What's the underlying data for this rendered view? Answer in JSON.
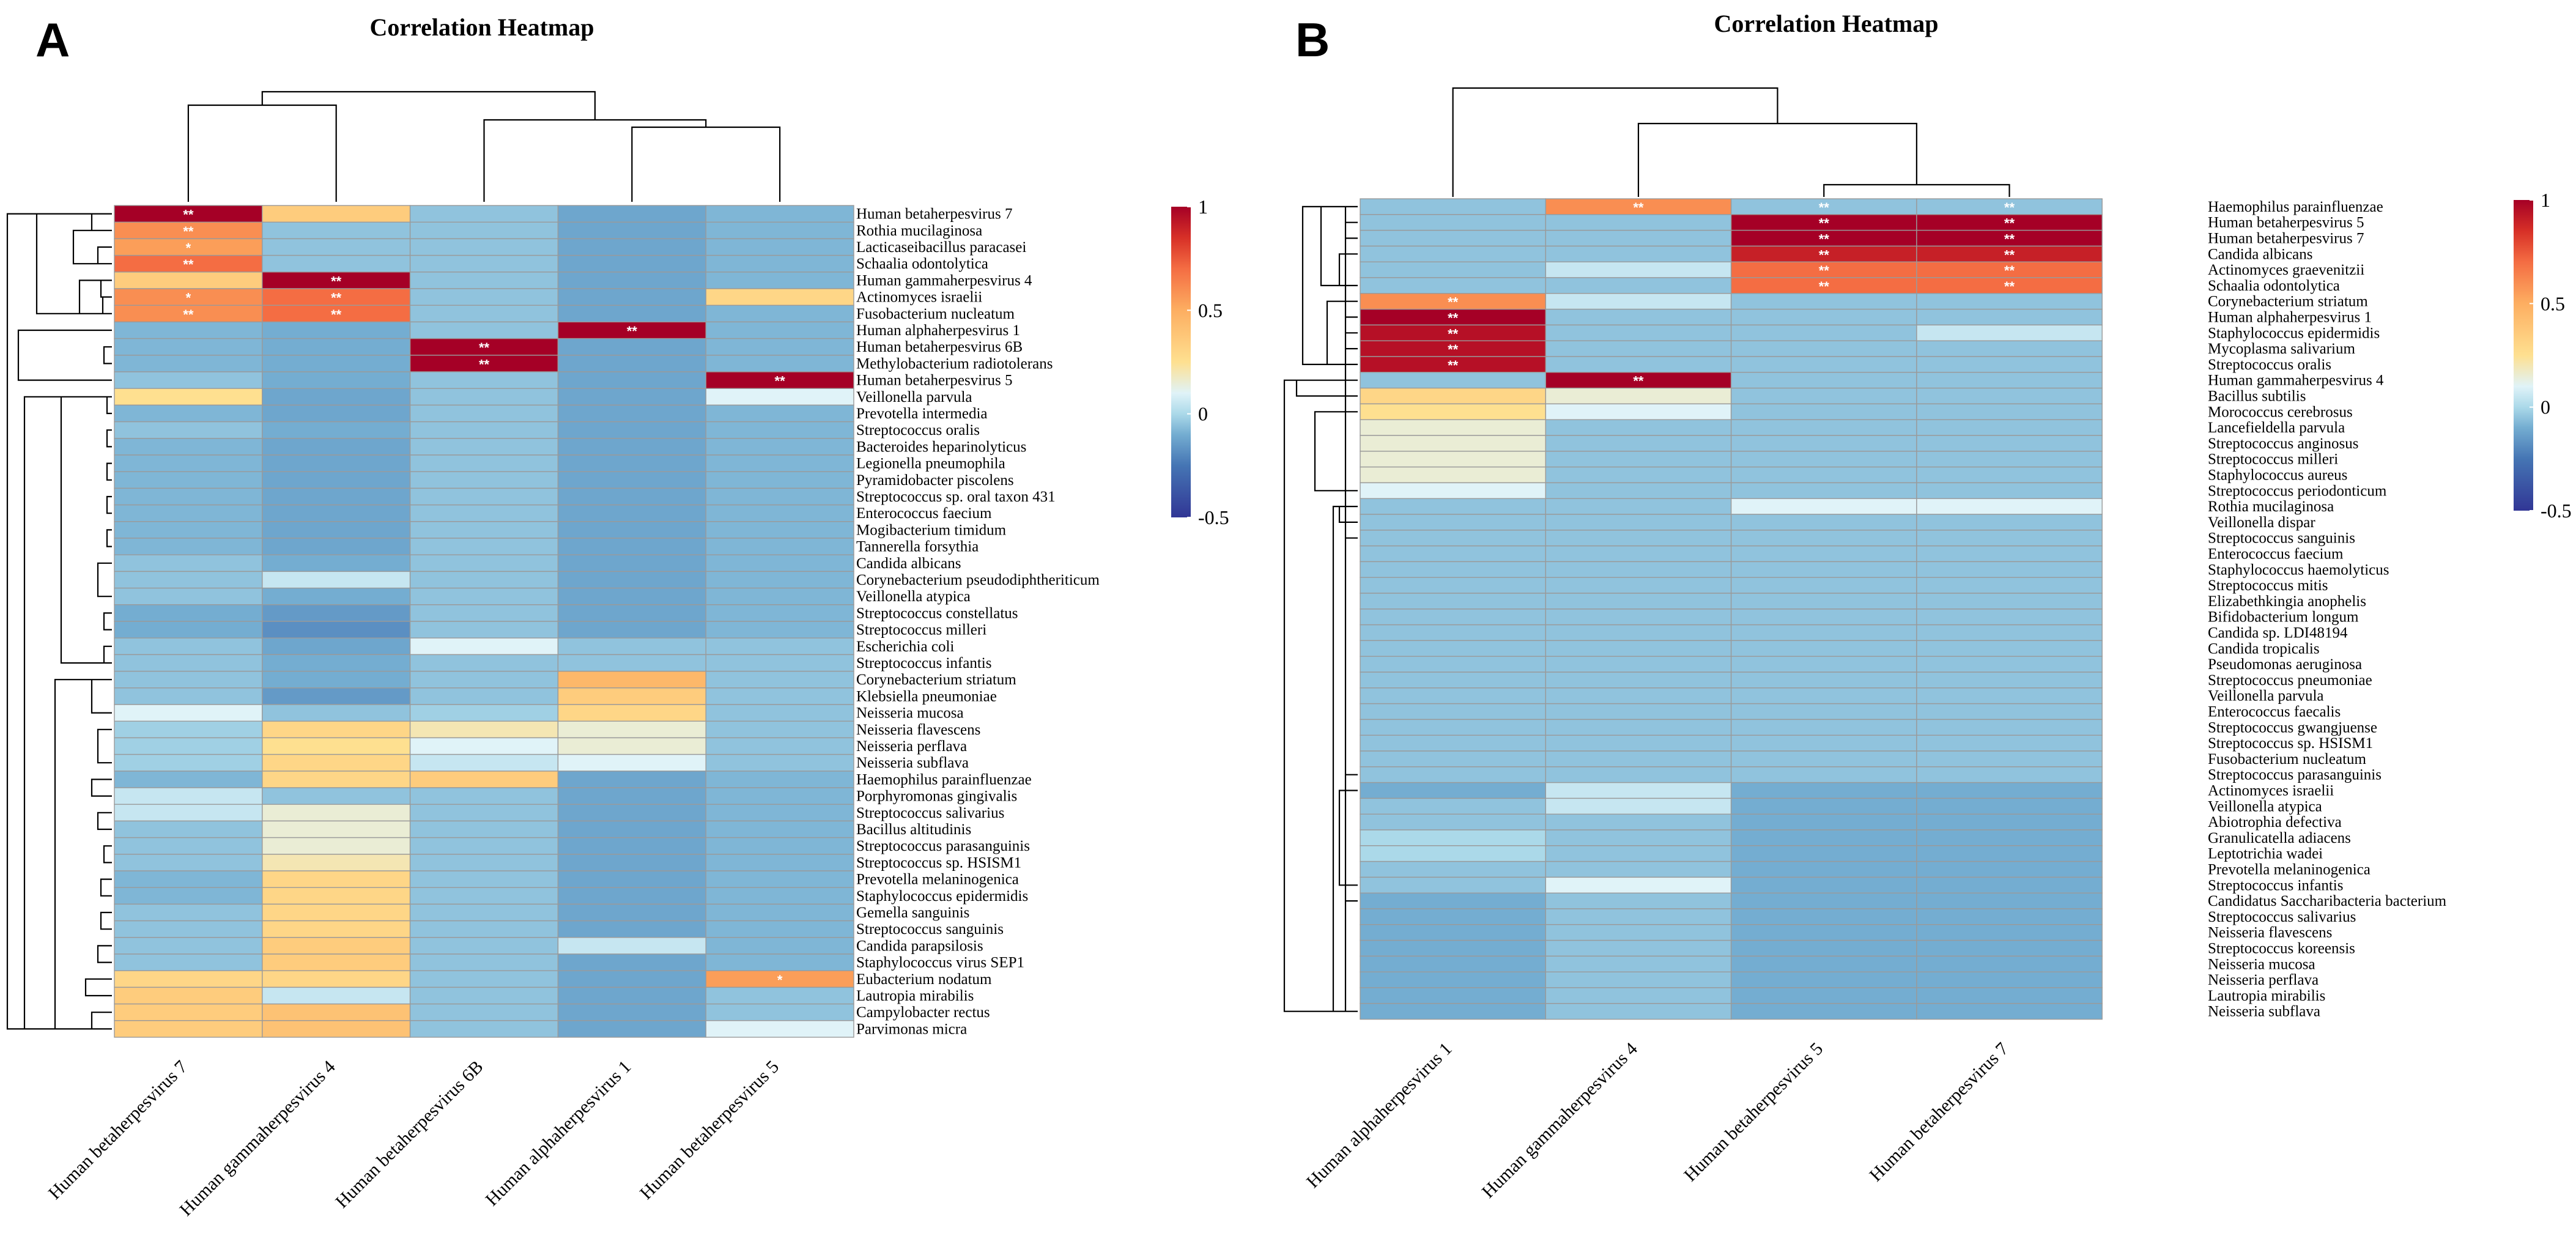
{
  "chart_data": [
    {
      "panel": "A",
      "type": "heatmap",
      "title": "Correlation Heatmap",
      "columns": [
        "Human betaherpesvirus 7",
        "Human gammaherpesvirus 4",
        "Human betaherpesvirus 6B",
        "Human alphaherpesvirus 1",
        "Human betaherpesvirus 5"
      ],
      "rows": [
        "Human betaherpesvirus 7",
        "Rothia mucilaginosa",
        "Lacticaseibacillus paracasei",
        "Schaalia odontolytica",
        "Human gammaherpesvirus 4",
        "Actinomyces israelii",
        "Fusobacterium nucleatum",
        "Human alphaherpesvirus 1",
        "Human betaherpesvirus 6B",
        "Methylobacterium radiotolerans",
        "Human betaherpesvirus 5",
        "Veillonella parvula",
        "Prevotella intermedia",
        "Streptococcus oralis",
        "Bacteroides heparinolyticus",
        "Legionella pneumophila",
        "Pyramidobacter piscolens",
        "Streptococcus sp. oral taxon 431",
        "Enterococcus faecium",
        "Mogibacterium timidum",
        "Tannerella forsythia",
        "Candida albicans",
        "Corynebacterium pseudodiphtheriticum",
        "Veillonella atypica",
        "Streptococcus constellatus",
        "Streptococcus milleri",
        "Escherichia coli",
        "Streptococcus infantis",
        "Corynebacterium striatum",
        "Klebsiella pneumoniae",
        "Neisseria mucosa",
        "Neisseria flavescens",
        "Neisseria perflava",
        "Neisseria subflava",
        "Haemophilus parainfluenzae",
        "Porphyromonas gingivalis",
        "Streptococcus salivarius",
        "Bacillus altitudinis",
        "Streptococcus parasanguinis",
        "Streptococcus sp. HSISM1",
        "Prevotella melaninogenica",
        "Staphylococcus epidermidis",
        "Gemella sanguinis",
        "Streptococcus sanguinis",
        "Candida parapsilosis",
        "Staphylococcus virus SEP1",
        "Eubacterium nodatum",
        "Lautropia mirabilis",
        "Campylobacter rectus",
        "Parvimonas micra"
      ],
      "values": [
        [
          1.0,
          0.35,
          -0.05,
          -0.12,
          -0.08
        ],
        [
          0.6,
          -0.05,
          -0.05,
          -0.12,
          -0.08
        ],
        [
          0.55,
          -0.05,
          -0.05,
          -0.12,
          -0.08
        ],
        [
          0.7,
          -0.05,
          -0.05,
          -0.12,
          -0.08
        ],
        [
          0.35,
          1.0,
          -0.05,
          -0.12,
          -0.08
        ],
        [
          0.6,
          0.7,
          -0.05,
          -0.12,
          0.3
        ],
        [
          0.6,
          0.7,
          -0.05,
          -0.12,
          -0.08
        ],
        [
          -0.08,
          -0.1,
          -0.05,
          1.0,
          -0.08
        ],
        [
          -0.08,
          -0.1,
          1.0,
          -0.12,
          -0.08
        ],
        [
          -0.08,
          -0.1,
          1.0,
          -0.12,
          -0.08
        ],
        [
          -0.05,
          -0.1,
          -0.05,
          -0.12,
          1.0
        ],
        [
          0.25,
          -0.12,
          -0.05,
          -0.12,
          0.1
        ],
        [
          -0.08,
          -0.12,
          -0.05,
          -0.12,
          -0.08
        ],
        [
          -0.05,
          -0.1,
          -0.05,
          -0.12,
          -0.08
        ],
        [
          -0.08,
          -0.12,
          -0.05,
          -0.12,
          -0.08
        ],
        [
          -0.08,
          -0.12,
          -0.05,
          -0.12,
          -0.08
        ],
        [
          -0.08,
          -0.12,
          -0.05,
          -0.12,
          -0.08
        ],
        [
          -0.08,
          -0.12,
          -0.05,
          -0.12,
          -0.08
        ],
        [
          -0.08,
          -0.12,
          -0.05,
          -0.12,
          -0.08
        ],
        [
          -0.08,
          -0.12,
          -0.05,
          -0.12,
          -0.08
        ],
        [
          -0.08,
          -0.12,
          -0.05,
          -0.12,
          -0.08
        ],
        [
          -0.05,
          -0.1,
          -0.05,
          -0.12,
          -0.08
        ],
        [
          -0.05,
          0.05,
          -0.05,
          -0.12,
          -0.08
        ],
        [
          -0.05,
          -0.1,
          -0.05,
          -0.12,
          -0.08
        ],
        [
          -0.1,
          -0.15,
          -0.05,
          -0.12,
          -0.08
        ],
        [
          -0.1,
          -0.18,
          -0.05,
          -0.12,
          -0.08
        ],
        [
          -0.05,
          -0.12,
          0.1,
          -0.05,
          -0.05
        ],
        [
          -0.05,
          -0.1,
          -0.05,
          -0.05,
          -0.05
        ],
        [
          -0.05,
          -0.1,
          -0.05,
          0.45,
          -0.05
        ],
        [
          -0.05,
          -0.15,
          -0.05,
          0.35,
          -0.05
        ],
        [
          0.1,
          -0.05,
          -0.02,
          0.3,
          -0.05
        ],
        [
          -0.02,
          0.3,
          0.2,
          0.15,
          -0.05
        ],
        [
          -0.02,
          0.25,
          0.1,
          0.15,
          -0.05
        ],
        [
          -0.02,
          0.3,
          0.05,
          0.1,
          -0.05
        ],
        [
          -0.08,
          0.3,
          0.35,
          -0.12,
          -0.08
        ],
        [
          0.05,
          -0.05,
          -0.05,
          -0.12,
          -0.08
        ],
        [
          0.05,
          0.15,
          -0.05,
          -0.12,
          -0.08
        ],
        [
          -0.05,
          0.15,
          -0.05,
          -0.12,
          -0.08
        ],
        [
          -0.05,
          0.15,
          -0.05,
          -0.12,
          -0.08
        ],
        [
          -0.05,
          0.2,
          -0.05,
          -0.12,
          -0.08
        ],
        [
          -0.08,
          0.3,
          -0.05,
          -0.12,
          -0.08
        ],
        [
          -0.08,
          0.3,
          -0.05,
          -0.12,
          -0.08
        ],
        [
          -0.05,
          0.3,
          -0.05,
          -0.12,
          -0.08
        ],
        [
          -0.05,
          0.3,
          -0.05,
          -0.12,
          -0.08
        ],
        [
          -0.05,
          0.35,
          -0.05,
          0.05,
          -0.08
        ],
        [
          -0.05,
          0.35,
          -0.05,
          -0.12,
          -0.08
        ],
        [
          0.3,
          0.3,
          -0.05,
          -0.12,
          0.55
        ],
        [
          0.35,
          0.05,
          -0.05,
          -0.12,
          -0.05
        ],
        [
          0.35,
          0.4,
          -0.05,
          -0.12,
          -0.05
        ],
        [
          0.35,
          0.4,
          -0.05,
          -0.12,
          0.1
        ]
      ],
      "annotations": [
        {
          "row": 0,
          "col": 0,
          "text": "**"
        },
        {
          "row": 1,
          "col": 0,
          "text": "**"
        },
        {
          "row": 2,
          "col": 0,
          "text": "*"
        },
        {
          "row": 3,
          "col": 0,
          "text": "**"
        },
        {
          "row": 4,
          "col": 1,
          "text": "**"
        },
        {
          "row": 5,
          "col": 0,
          "text": "*"
        },
        {
          "row": 5,
          "col": 1,
          "text": "**"
        },
        {
          "row": 6,
          "col": 0,
          "text": "**"
        },
        {
          "row": 6,
          "col": 1,
          "text": "**"
        },
        {
          "row": 7,
          "col": 3,
          "text": "**"
        },
        {
          "row": 8,
          "col": 2,
          "text": "**"
        },
        {
          "row": 9,
          "col": 2,
          "text": "**"
        },
        {
          "row": 10,
          "col": 4,
          "text": "**"
        },
        {
          "row": 46,
          "col": 4,
          "text": "*"
        }
      ],
      "colorbar": {
        "min": -0.5,
        "max": 1,
        "ticks": [
          "1",
          "0.5",
          "0",
          "-0.5"
        ]
      }
    },
    {
      "panel": "B",
      "type": "heatmap",
      "title": "Correlation Heatmap",
      "columns": [
        "Human alphaherpesvirus 1",
        "Human gammaherpesvirus 4",
        "Human betaherpesvirus 5",
        "Human betaherpesvirus 7"
      ],
      "rows": [
        "Haemophilus parainfluenzae",
        "Human betaherpesvirus 5",
        "Human betaherpesvirus 7",
        "Candida albicans",
        "Actinomyces graevenitzii",
        "Schaalia odontolytica",
        "Corynebacterium striatum",
        "Human alphaherpesvirus 1",
        "Staphylococcus epidermidis",
        "Mycoplasma salivarium",
        "Streptococcus oralis",
        "Human gammaherpesvirus 4",
        "Bacillus subtilis",
        "Morococcus cerebrosus",
        "Lancefieldella parvula",
        "Streptococcus anginosus",
        "Streptococcus milleri",
        "Staphylococcus aureus",
        "Streptococcus periodonticum",
        "Rothia mucilaginosa",
        "Veillonella dispar",
        "Streptococcus sanguinis",
        "Enterococcus faecium",
        "Staphylococcus haemolyticus",
        "Streptococcus mitis",
        "Elizabethkingia anophelis",
        "Bifidobacterium longum",
        "Candida sp. LDI48194",
        "Candida tropicalis",
        "Pseudomonas aeruginosa",
        "Streptococcus pneumoniae",
        "Veillonella parvula",
        "Enterococcus faecalis",
        "Streptococcus gwangjuense",
        "Streptococcus sp. HSISM1",
        "Fusobacterium nucleatum",
        "Streptococcus parasanguinis",
        "Actinomyces israelii",
        "Veillonella atypica",
        "Abiotrophia defectiva",
        "Granulicatella adiacens",
        "Leptotrichia wadei",
        "Prevotella melaninogenica",
        "Streptococcus infantis",
        "Candidatus Saccharibacteria bacterium",
        "Streptococcus salivarius",
        "Neisseria flavescens",
        "Streptococcus koreensis",
        "Neisseria mucosa",
        "Neisseria perflava",
        "Lautropia mirabilis",
        "Neisseria subflava"
      ],
      "values": [
        [
          -0.05,
          0.6,
          -0.05,
          -0.05
        ],
        [
          -0.05,
          -0.05,
          1.0,
          1.0
        ],
        [
          -0.05,
          -0.05,
          1.0,
          1.0
        ],
        [
          -0.05,
          -0.05,
          0.9,
          0.9
        ],
        [
          -0.05,
          0.05,
          0.7,
          0.7
        ],
        [
          -0.05,
          -0.05,
          0.7,
          0.7
        ],
        [
          0.6,
          0.05,
          -0.05,
          -0.05
        ],
        [
          1.0,
          -0.05,
          -0.05,
          -0.05
        ],
        [
          0.95,
          -0.05,
          -0.05,
          0.05
        ],
        [
          0.95,
          -0.05,
          -0.05,
          -0.05
        ],
        [
          0.95,
          -0.05,
          -0.05,
          -0.05
        ],
        [
          -0.05,
          1.0,
          -0.05,
          -0.05
        ],
        [
          0.3,
          0.15,
          -0.05,
          -0.05
        ],
        [
          0.25,
          0.1,
          -0.05,
          -0.05
        ],
        [
          0.15,
          -0.05,
          -0.05,
          -0.05
        ],
        [
          0.15,
          -0.05,
          -0.05,
          -0.05
        ],
        [
          0.15,
          -0.05,
          -0.05,
          -0.05
        ],
        [
          0.15,
          -0.05,
          -0.05,
          -0.05
        ],
        [
          0.1,
          -0.05,
          -0.05,
          -0.05
        ],
        [
          -0.05,
          -0.05,
          0.1,
          0.1
        ],
        [
          -0.05,
          -0.05,
          -0.05,
          -0.05
        ],
        [
          -0.05,
          -0.05,
          -0.05,
          -0.05
        ],
        [
          -0.05,
          -0.05,
          -0.05,
          -0.05
        ],
        [
          -0.05,
          -0.05,
          -0.05,
          -0.05
        ],
        [
          -0.05,
          -0.05,
          -0.05,
          -0.05
        ],
        [
          -0.05,
          -0.05,
          -0.05,
          -0.05
        ],
        [
          -0.05,
          -0.05,
          -0.05,
          -0.05
        ],
        [
          -0.05,
          -0.05,
          -0.05,
          -0.05
        ],
        [
          -0.05,
          -0.05,
          -0.05,
          -0.05
        ],
        [
          -0.05,
          -0.05,
          -0.05,
          -0.05
        ],
        [
          -0.05,
          -0.05,
          -0.05,
          -0.05
        ],
        [
          -0.05,
          -0.05,
          -0.05,
          -0.05
        ],
        [
          -0.05,
          -0.05,
          -0.05,
          -0.05
        ],
        [
          -0.05,
          -0.05,
          -0.05,
          -0.05
        ],
        [
          -0.05,
          -0.05,
          -0.05,
          -0.05
        ],
        [
          -0.05,
          -0.05,
          -0.05,
          -0.05
        ],
        [
          -0.05,
          -0.05,
          -0.05,
          -0.05
        ],
        [
          -0.1,
          0.05,
          -0.1,
          -0.1
        ],
        [
          -0.05,
          0.05,
          -0.1,
          -0.1
        ],
        [
          -0.05,
          -0.05,
          -0.1,
          -0.1
        ],
        [
          0.0,
          -0.05,
          -0.1,
          -0.1
        ],
        [
          0.0,
          -0.05,
          -0.1,
          -0.1
        ],
        [
          -0.05,
          -0.05,
          -0.1,
          -0.1
        ],
        [
          -0.05,
          0.1,
          -0.1,
          -0.1
        ],
        [
          -0.1,
          -0.05,
          -0.1,
          -0.1
        ],
        [
          -0.1,
          -0.05,
          -0.1,
          -0.1
        ],
        [
          -0.1,
          -0.05,
          -0.1,
          -0.1
        ],
        [
          -0.1,
          -0.05,
          -0.1,
          -0.1
        ],
        [
          -0.1,
          -0.05,
          -0.1,
          -0.1
        ],
        [
          -0.1,
          -0.05,
          -0.1,
          -0.1
        ],
        [
          -0.1,
          -0.05,
          -0.1,
          -0.1
        ],
        [
          -0.1,
          -0.05,
          -0.1,
          -0.1
        ]
      ],
      "annotations": [
        {
          "row": 0,
          "col": 1,
          "text": "**"
        },
        {
          "row": 0,
          "col": 2,
          "text": "**"
        },
        {
          "row": 0,
          "col": 3,
          "text": "**"
        },
        {
          "row": 1,
          "col": 2,
          "text": "**"
        },
        {
          "row": 1,
          "col": 3,
          "text": "**"
        },
        {
          "row": 2,
          "col": 2,
          "text": "**"
        },
        {
          "row": 2,
          "col": 3,
          "text": "**"
        },
        {
          "row": 3,
          "col": 2,
          "text": "**"
        },
        {
          "row": 3,
          "col": 3,
          "text": "**"
        },
        {
          "row": 4,
          "col": 2,
          "text": "**"
        },
        {
          "row": 4,
          "col": 3,
          "text": "**"
        },
        {
          "row": 5,
          "col": 2,
          "text": "**"
        },
        {
          "row": 5,
          "col": 3,
          "text": "**"
        },
        {
          "row": 6,
          "col": 0,
          "text": "**"
        },
        {
          "row": 7,
          "col": 0,
          "text": "**"
        },
        {
          "row": 8,
          "col": 0,
          "text": "**"
        },
        {
          "row": 9,
          "col": 0,
          "text": "**"
        },
        {
          "row": 10,
          "col": 0,
          "text": "**"
        },
        {
          "row": 11,
          "col": 1,
          "text": "**"
        }
      ],
      "colorbar": {
        "min": -0.5,
        "max": 1,
        "ticks": [
          "1",
          "0.5",
          "0",
          "-0.5"
        ]
      }
    }
  ],
  "colors": {
    "scale": [
      "#313695",
      "#4575b4",
      "#74add1",
      "#abd9e9",
      "#e0f3f8",
      "#fee090",
      "#fdae61",
      "#f46d43",
      "#d73027",
      "#a50026"
    ],
    "grid": "#9a9a9a",
    "annotation": "#ffffff"
  }
}
